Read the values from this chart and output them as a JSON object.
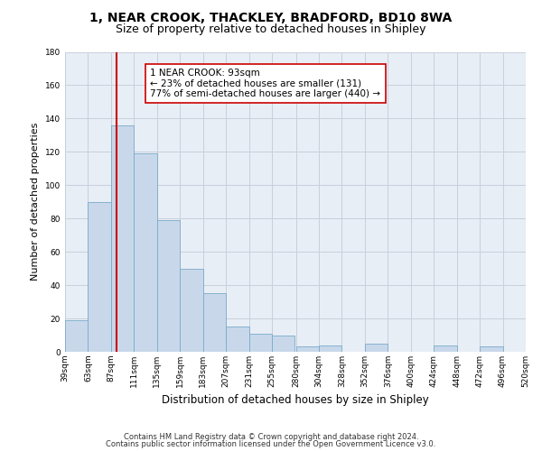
{
  "title": "1, NEAR CROOK, THACKLEY, BRADFORD, BD10 8WA",
  "subtitle": "Size of property relative to detached houses in Shipley",
  "xlabel": "Distribution of detached houses by size in Shipley",
  "ylabel": "Number of detached properties",
  "bar_color": "#c8d8ea",
  "bar_edge_color": "#7aaac8",
  "bg_color": "#e8eef6",
  "fig_color": "#ffffff",
  "grid_color": "#c8d0dc",
  "bins": [
    39,
    63,
    87,
    111,
    135,
    159,
    183,
    207,
    231,
    255,
    280,
    304,
    328,
    352,
    376,
    400,
    424,
    448,
    472,
    496,
    520
  ],
  "values": [
    19,
    90,
    136,
    119,
    79,
    50,
    35,
    15,
    11,
    10,
    3,
    4,
    0,
    5,
    0,
    0,
    4,
    0,
    3,
    0
  ],
  "property_size": 93,
  "line_color": "#cc0000",
  "ann_line1": "1 NEAR CROOK: 93sqm",
  "ann_line2": "← 23% of detached houses are smaller (131)",
  "ann_line3": "77% of semi-detached houses are larger (440) →",
  "ann_box_fc": "#ffffff",
  "ann_box_ec": "#cc0000",
  "ylim": [
    0,
    180
  ],
  "yticks": [
    0,
    20,
    40,
    60,
    80,
    100,
    120,
    140,
    160,
    180
  ],
  "tick_labels": [
    "39sqm",
    "63sqm",
    "87sqm",
    "111sqm",
    "135sqm",
    "159sqm",
    "183sqm",
    "207sqm",
    "231sqm",
    "255sqm",
    "280sqm",
    "304sqm",
    "328sqm",
    "352sqm",
    "376sqm",
    "400sqm",
    "424sqm",
    "448sqm",
    "472sqm",
    "496sqm",
    "520sqm"
  ],
  "footer1": "Contains HM Land Registry data © Crown copyright and database right 2024.",
  "footer2": "Contains public sector information licensed under the Open Government Licence v3.0.",
  "title_fontsize": 10,
  "subtitle_fontsize": 9,
  "ylabel_fontsize": 8,
  "xlabel_fontsize": 8.5,
  "tick_fontsize": 6.5,
  "footer_fontsize": 6,
  "ann_fontsize": 7.5
}
